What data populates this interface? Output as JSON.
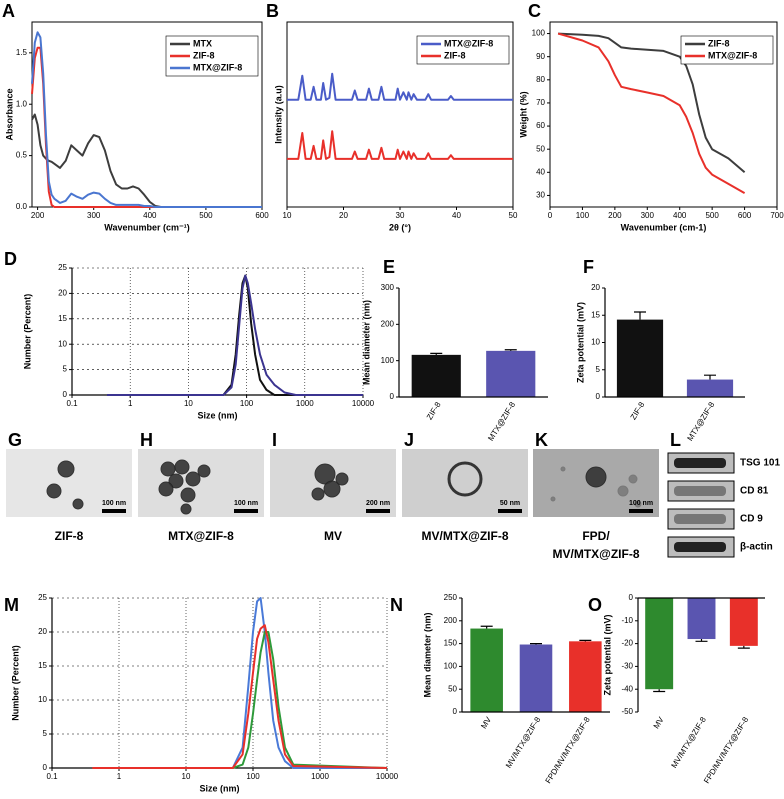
{
  "chart_data": [
    {
      "type": "line",
      "label": "A",
      "xlabel": "Wavenumber (cm⁻¹)",
      "ylabel": "Absorbance",
      "xlim": [
        190,
        600
      ],
      "ylim": [
        0,
        1.8
      ],
      "xticks": [
        200,
        300,
        400,
        500,
        600
      ],
      "yticks": [
        {
          "value": 0,
          "label": "0.0"
        },
        0.5,
        {
          "value": 1,
          "label": "1.0"
        },
        1.5
      ],
      "legend": "upper right",
      "x": [
        190,
        195,
        200,
        205,
        210,
        215,
        220,
        225,
        230,
        240,
        250,
        260,
        270,
        280,
        290,
        300,
        310,
        320,
        330,
        340,
        350,
        360,
        370,
        380,
        390,
        400,
        410,
        420,
        450,
        500,
        550,
        600
      ],
      "series": [
        {
          "name": "MTX",
          "color": "#3d3d3d",
          "values": [
            0.85,
            0.9,
            0.8,
            0.6,
            0.5,
            0.47,
            0.45,
            0.44,
            0.42,
            0.38,
            0.45,
            0.6,
            0.55,
            0.5,
            0.62,
            0.7,
            0.68,
            0.55,
            0.35,
            0.22,
            0.18,
            0.18,
            0.2,
            0.18,
            0.12,
            0.05,
            0.01,
            0,
            0,
            0,
            0,
            0
          ]
        },
        {
          "name": "ZIF-8",
          "color": "#e8302a",
          "values": [
            1.1,
            1.45,
            1.55,
            1.55,
            1.2,
            0.6,
            0.15,
            0.02,
            0,
            0,
            0,
            0,
            0,
            0,
            0,
            0,
            0,
            0,
            0,
            0,
            0,
            0,
            0,
            0,
            0,
            0,
            0,
            0,
            0,
            0,
            0,
            0
          ]
        },
        {
          "name": "MTX@ZIF-8",
          "color": "#4a76d0",
          "values": [
            1.2,
            1.6,
            1.7,
            1.65,
            1.3,
            0.7,
            0.25,
            0.12,
            0.08,
            0.04,
            0.06,
            0.13,
            0.1,
            0.08,
            0.12,
            0.14,
            0.13,
            0.08,
            0.04,
            0.02,
            0.02,
            0.02,
            0.02,
            0.02,
            0.01,
            0.01,
            0,
            0,
            0,
            0,
            0,
            0
          ]
        }
      ]
    },
    {
      "type": "line",
      "label": "B",
      "xlabel": "2θ (°)",
      "ylabel": "Intensity (a.u)",
      "xlim": [
        10,
        50
      ],
      "ylim": [
        0,
        100
      ],
      "xticks": [
        10,
        20,
        30,
        40,
        50
      ],
      "legend": "upper right",
      "x": [
        10,
        12,
        12.7,
        13.3,
        14.2,
        14.7,
        15.2,
        16,
        16.4,
        16.9,
        17.5,
        18,
        18.6,
        21.5,
        22,
        22.5,
        24,
        24.5,
        25,
        26.2,
        26.7,
        27.2,
        29.2,
        29.6,
        30,
        30.6,
        31.2,
        31.5,
        32,
        32.4,
        33,
        34.5,
        35,
        35.5,
        38.5,
        39,
        39.5,
        44,
        50
      ],
      "series": [
        {
          "name": "MTX@ZIF-8",
          "color": "#4a5cc8",
          "values": [
            58,
            58,
            71,
            58,
            58,
            65,
            58,
            58,
            67,
            58,
            59,
            72,
            58,
            58,
            63,
            58,
            58,
            64,
            58,
            58,
            65,
            58,
            58,
            64,
            58,
            62,
            58,
            62,
            58,
            61,
            58,
            58,
            61,
            58,
            58,
            60,
            58,
            58,
            58
          ]
        },
        {
          "name": "ZIF-8",
          "color": "#e8302a",
          "values": [
            26,
            26,
            40,
            26,
            26,
            33,
            26,
            26,
            36,
            26,
            27,
            41,
            26,
            26,
            30,
            26,
            26,
            31,
            26,
            26,
            32,
            26,
            26,
            31,
            26,
            30,
            26,
            30,
            26,
            29,
            26,
            26,
            29,
            26,
            26,
            28,
            26,
            26,
            26
          ]
        }
      ]
    },
    {
      "type": "line",
      "label": "C",
      "xlabel": "Wavenumber (cm-1)",
      "ylabel": "Weight (%)",
      "xlim": [
        0,
        700
      ],
      "ylim": [
        25,
        105
      ],
      "xticks": [
        0,
        100,
        200,
        300,
        400,
        500,
        600,
        700
      ],
      "yticks": [
        30,
        40,
        50,
        60,
        70,
        80,
        90,
        100
      ],
      "legend": "upper right",
      "x": [
        25,
        100,
        150,
        180,
        200,
        220,
        250,
        300,
        350,
        400,
        420,
        440,
        460,
        480,
        500,
        550,
        600
      ],
      "series": [
        {
          "name": "ZIF-8",
          "color": "#3d3d3d",
          "values": [
            100,
            99.5,
            99,
            98,
            96,
            94,
            93.5,
            93,
            92.5,
            90,
            86,
            78,
            65,
            55,
            50,
            46,
            40
          ]
        },
        {
          "name": "MTX@ZIF-8",
          "color": "#e8302a",
          "values": [
            100,
            97,
            94,
            88,
            82,
            77,
            76,
            74.5,
            73,
            69,
            64,
            57,
            48,
            42,
            39,
            35,
            31
          ]
        }
      ]
    },
    {
      "type": "line",
      "label": "D",
      "xlabel": "Size (nm)",
      "ylabel": "Number (Percent)",
      "xscale": "log",
      "grid": true,
      "xlim": [
        0.1,
        10000
      ],
      "ylim": [
        0,
        25
      ],
      "xticks": [
        0.1,
        1,
        10,
        100,
        1000,
        10000
      ],
      "yticks": [
        0,
        5,
        10,
        15,
        20,
        25
      ],
      "x": [
        0.4,
        40,
        55,
        65,
        75,
        85,
        95,
        105,
        120,
        140,
        170,
        220,
        300,
        450,
        700,
        10000
      ],
      "series": [
        {
          "color": "#111111",
          "values": [
            0,
            0,
            2,
            8,
            16,
            22,
            23.5,
            21,
            14,
            8,
            3,
            1,
            0,
            0,
            0,
            0
          ]
        },
        {
          "color": "#3b3490",
          "values": [
            0,
            0,
            1.5,
            6,
            14,
            21,
            23.5,
            22,
            18,
            13,
            8,
            4,
            2,
            0.5,
            0,
            0
          ]
        }
      ]
    },
    {
      "type": "bar",
      "label": "E",
      "ylabel": "Mean diameter (nm)",
      "ylim": [
        0,
        300
      ],
      "yticks": [
        0,
        100,
        200,
        300
      ],
      "categories": [
        "ZIF-8",
        "MTX@ZIF-8"
      ],
      "values": [
        116,
        127
      ],
      "errors": [
        4,
        3
      ],
      "colors": [
        "#111111",
        "#5a55b0"
      ]
    },
    {
      "type": "bar",
      "label": "F",
      "ylabel": "Zeta potential (mV)",
      "ylim": [
        0,
        20
      ],
      "yticks": [
        0,
        5,
        10,
        15,
        20
      ],
      "categories": [
        "ZIF-8",
        "MTX@ZIF-8"
      ],
      "values": [
        14.2,
        3.2
      ],
      "errors": [
        1.4,
        0.8
      ],
      "colors": [
        "#111111",
        "#5a55b0"
      ]
    },
    {
      "type": "line",
      "label": "M",
      "xlabel": "Size (nm)",
      "ylabel": "Number (Percent)",
      "xscale": "log",
      "grid": true,
      "xlim": [
        0.1,
        10000
      ],
      "ylim": [
        0,
        25
      ],
      "xticks": [
        0.1,
        1,
        10,
        100,
        1000,
        10000
      ],
      "yticks": [
        0,
        5,
        10,
        15,
        20,
        25
      ],
      "x": [
        0.4,
        50,
        70,
        85,
        100,
        115,
        130,
        150,
        170,
        200,
        240,
        300,
        400,
        10000
      ],
      "series": [
        {
          "color": "#4a7ad8",
          "values": [
            0,
            0,
            3,
            12,
            20,
            24.5,
            25,
            20,
            14,
            7,
            3,
            1,
            0,
            0
          ]
        },
        {
          "color": "#2e9a3a",
          "values": [
            0,
            0,
            0.5,
            3,
            8,
            13,
            17,
            20,
            20,
            16,
            9,
            3,
            0.5,
            0
          ]
        },
        {
          "color": "#e8302a",
          "values": [
            0,
            0,
            2,
            8,
            14,
            19,
            20.5,
            21,
            18.5,
            13,
            7,
            2,
            0.3,
            0
          ]
        }
      ]
    },
    {
      "type": "bar",
      "label": "N",
      "ylabel": "Mean diameter (nm)",
      "ylim": [
        0,
        250
      ],
      "yticks": [
        0,
        50,
        100,
        150,
        200,
        250
      ],
      "categories": [
        "MV",
        "MV/MTX@ZIF-8",
        "FPD/MV/MTX@ZIF-8"
      ],
      "values": [
        183,
        148,
        155
      ],
      "errors": [
        5,
        2,
        2
      ],
      "colors": [
        "#2e8a2e",
        "#5a55b0",
        "#e8302a"
      ]
    },
    {
      "type": "bar",
      "label": "O",
      "ylabel": "Zeta potential (mV)",
      "ylim": [
        -50,
        0
      ],
      "yticks": [
        0,
        -10,
        -20,
        -30,
        -40,
        -50
      ],
      "categories": [
        "MV",
        "MV/MTX@ZIF-8",
        "FPD/MV/MTX@ZIF-8"
      ],
      "values": [
        -40,
        -18,
        -21
      ],
      "errors": [
        1,
        1,
        1
      ],
      "colors": [
        "#2e8a2e",
        "#5a55b0",
        "#e8302a"
      ]
    }
  ],
  "images": [
    {
      "label": "G",
      "scale_bar": "100 nm",
      "caption": [
        "ZIF-8"
      ]
    },
    {
      "label": "H",
      "scale_bar": "100 nm",
      "caption": [
        "MTX@ZIF-8"
      ]
    },
    {
      "label": "I",
      "scale_bar": "200 nm",
      "caption": [
        "MV"
      ]
    },
    {
      "label": "J",
      "scale_bar": "50 nm",
      "caption": [
        "MV/MTX@ZIF-8"
      ]
    },
    {
      "label": "K",
      "scale_bar": "100 nm",
      "caption": [
        "FPD/",
        "MV/MTX@ZIF-8"
      ]
    }
  ],
  "blot": {
    "label": "L",
    "bands": [
      "TSG 101",
      "CD 81",
      "CD 9",
      "β-actin"
    ]
  }
}
